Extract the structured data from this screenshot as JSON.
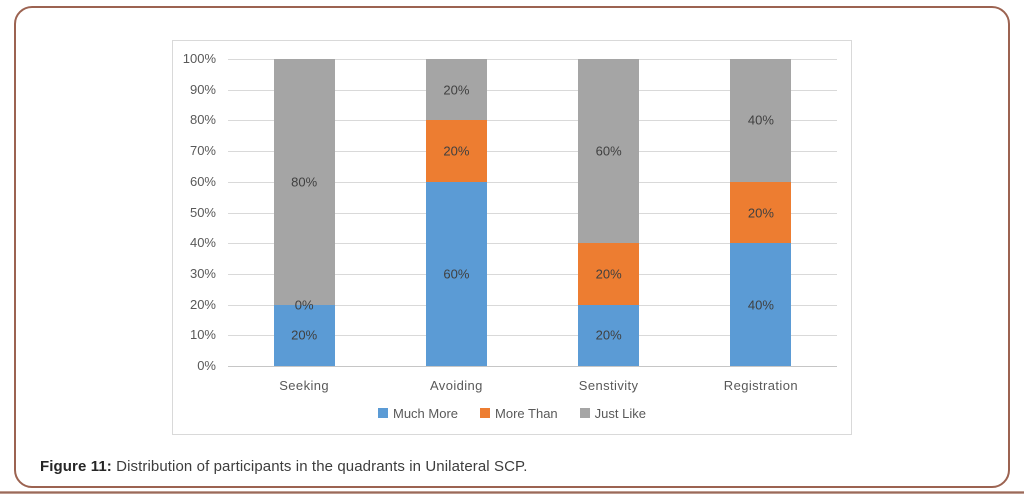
{
  "figure": {
    "caption_label": "Figure 11:",
    "caption_text": "Distribution of participants in the quadrants in Unilateral SCP."
  },
  "chart_data": {
    "type": "bar",
    "subtype": "stacked-100-percent-column",
    "categories": [
      "Seeking",
      "Avoiding",
      "Senstivity",
      "Registration"
    ],
    "series": [
      {
        "name": "Much More",
        "color": "#5b9bd5",
        "values": [
          20,
          60,
          20,
          40
        ]
      },
      {
        "name": "More Than",
        "color": "#ed7d31",
        "values": [
          0,
          20,
          20,
          20
        ]
      },
      {
        "name": "Just Like",
        "color": "#a5a5a5",
        "values": [
          80,
          20,
          60,
          40
        ]
      }
    ],
    "y_ticks": [
      "0%",
      "10%",
      "20%",
      "30%",
      "40%",
      "50%",
      "60%",
      "70%",
      "80%",
      "90%",
      "100%"
    ],
    "ylim": [
      0,
      100
    ],
    "grid": true,
    "legend_position": "bottom",
    "data_labels": true
  },
  "style": {
    "card_border_color": "#9c6351",
    "grid_color": "#d9d9d9",
    "axis_text_color": "#595959",
    "data_label_color": "#404040",
    "chart_border_color": "#d9d9d9"
  }
}
